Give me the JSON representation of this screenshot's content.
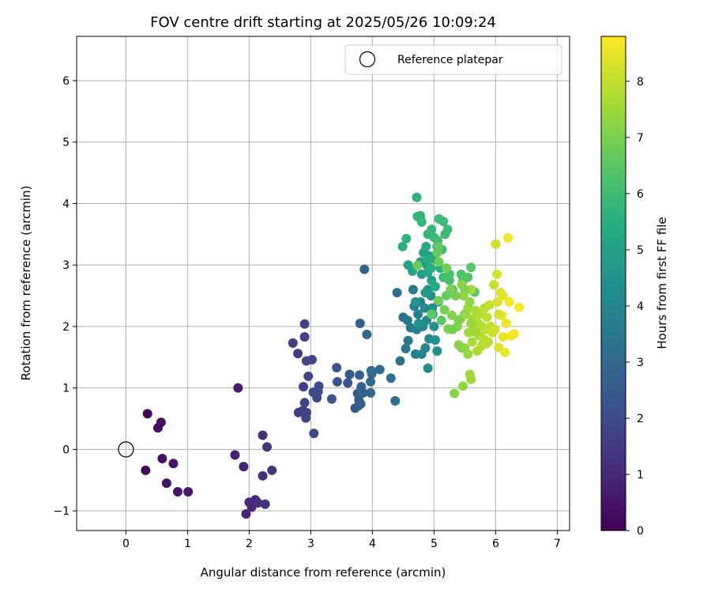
{
  "chart_data": {
    "type": "scatter",
    "title": "FOV centre drift starting at 2025/05/26 10:09:24",
    "xlabel": "Angular distance from reference (arcmin)",
    "ylabel": "Rotation from reference (arcmin)",
    "xlim": [
      -0.8,
      7.2
    ],
    "ylim": [
      -1.32,
      6.72
    ],
    "xticks": [
      0,
      1,
      2,
      3,
      4,
      5,
      6,
      7
    ],
    "yticks": [
      -1,
      0,
      1,
      2,
      3,
      4,
      5,
      6
    ],
    "grid": true,
    "legend": {
      "placement": "top-right",
      "entries": [
        "Reference platepar"
      ]
    },
    "reference_point": {
      "x": 0,
      "y": 0,
      "label": "Reference platepar"
    },
    "colorbar": {
      "label": "Hours from first FF file",
      "colormap": "viridis",
      "range": [
        0,
        8.8
      ],
      "ticks": [
        0,
        1,
        2,
        3,
        4,
        5,
        6,
        7,
        8
      ]
    },
    "points": [
      {
        "x": 0.32,
        "y": -0.34,
        "h": 0.1
      },
      {
        "x": 0.35,
        "y": 0.58,
        "h": 0.2
      },
      {
        "x": 0.52,
        "y": 0.35,
        "h": 0.3
      },
      {
        "x": 0.57,
        "y": 0.44,
        "h": 0.35
      },
      {
        "x": 0.59,
        "y": -0.15,
        "h": 0.4
      },
      {
        "x": 0.66,
        "y": -0.55,
        "h": 0.45
      },
      {
        "x": 0.77,
        "y": -0.23,
        "h": 0.5
      },
      {
        "x": 0.84,
        "y": -0.69,
        "h": 0.55
      },
      {
        "x": 1.01,
        "y": -0.69,
        "h": 0.6
      },
      {
        "x": 1.82,
        "y": 1.0,
        "h": 0.7
      },
      {
        "x": 1.77,
        "y": -0.09,
        "h": 0.8
      },
      {
        "x": 1.91,
        "y": -0.28,
        "h": 0.85
      },
      {
        "x": 1.95,
        "y": -1.05,
        "h": 0.9
      },
      {
        "x": 2.0,
        "y": -0.86,
        "h": 0.95
      },
      {
        "x": 2.04,
        "y": -0.94,
        "h": 1.0
      },
      {
        "x": 2.1,
        "y": -0.82,
        "h": 1.05
      },
      {
        "x": 2.14,
        "y": -0.87,
        "h": 1.1
      },
      {
        "x": 2.22,
        "y": 0.23,
        "h": 1.15
      },
      {
        "x": 2.22,
        "y": -0.43,
        "h": 1.2
      },
      {
        "x": 2.26,
        "y": -0.89,
        "h": 1.25
      },
      {
        "x": 2.29,
        "y": 0.04,
        "h": 1.3
      },
      {
        "x": 2.37,
        "y": -0.34,
        "h": 1.35
      },
      {
        "x": 2.71,
        "y": 1.73,
        "h": 1.5
      },
      {
        "x": 2.79,
        "y": 1.56,
        "h": 1.55
      },
      {
        "x": 2.8,
        "y": 0.6,
        "h": 1.6
      },
      {
        "x": 2.87,
        "y": 0.63,
        "h": 1.65
      },
      {
        "x": 2.88,
        "y": 1.02,
        "h": 1.7
      },
      {
        "x": 2.9,
        "y": 2.04,
        "h": 1.72
      },
      {
        "x": 2.9,
        "y": 0.76,
        "h": 1.75
      },
      {
        "x": 2.9,
        "y": 1.83,
        "h": 1.78
      },
      {
        "x": 2.92,
        "y": 0.51,
        "h": 1.8
      },
      {
        "x": 2.93,
        "y": 1.44,
        "h": 1.85
      },
      {
        "x": 2.93,
        "y": 0.6,
        "h": 1.88
      },
      {
        "x": 2.96,
        "y": 1.19,
        "h": 1.9
      },
      {
        "x": 3.02,
        "y": 1.46,
        "h": 1.92
      },
      {
        "x": 3.04,
        "y": 0.93,
        "h": 1.95
      },
      {
        "x": 3.05,
        "y": 0.26,
        "h": 1.98
      },
      {
        "x": 3.1,
        "y": 0.84,
        "h": 2.0
      },
      {
        "x": 3.13,
        "y": 1.03,
        "h": 2.05
      },
      {
        "x": 3.12,
        "y": 0.94,
        "h": 2.1
      },
      {
        "x": 3.34,
        "y": 0.82,
        "h": 2.2
      },
      {
        "x": 3.42,
        "y": 1.33,
        "h": 2.25
      },
      {
        "x": 3.43,
        "y": 1.1,
        "h": 2.3
      },
      {
        "x": 3.6,
        "y": 1.08,
        "h": 2.35
      },
      {
        "x": 3.63,
        "y": 1.22,
        "h": 2.4
      },
      {
        "x": 3.72,
        "y": 0.67,
        "h": 2.45
      },
      {
        "x": 3.76,
        "y": 0.91,
        "h": 2.5
      },
      {
        "x": 3.77,
        "y": 0.71,
        "h": 2.55
      },
      {
        "x": 3.78,
        "y": 0.81,
        "h": 2.6
      },
      {
        "x": 3.79,
        "y": 1.21,
        "h": 2.65
      },
      {
        "x": 3.8,
        "y": 2.05,
        "h": 2.7
      },
      {
        "x": 3.81,
        "y": 0.74,
        "h": 2.72
      },
      {
        "x": 3.82,
        "y": 1.02,
        "h": 2.75
      },
      {
        "x": 3.85,
        "y": 0.92,
        "h": 2.8
      },
      {
        "x": 3.87,
        "y": 2.93,
        "h": 2.85
      },
      {
        "x": 3.91,
        "y": 1.87,
        "h": 2.9
      },
      {
        "x": 3.97,
        "y": 0.92,
        "h": 2.95
      },
      {
        "x": 3.97,
        "y": 1.1,
        "h": 3.0
      },
      {
        "x": 3.98,
        "y": 1.28,
        "h": 3.05
      },
      {
        "x": 3.99,
        "y": 1.23,
        "h": 3.08
      },
      {
        "x": 4.12,
        "y": 1.3,
        "h": 3.1
      },
      {
        "x": 4.3,
        "y": 1.16,
        "h": 3.15
      },
      {
        "x": 4.37,
        "y": 0.79,
        "h": 3.2
      },
      {
        "x": 4.4,
        "y": 2.55,
        "h": 3.25
      },
      {
        "x": 4.45,
        "y": 1.44,
        "h": 3.3
      },
      {
        "x": 4.5,
        "y": 2.15,
        "h": 3.35
      },
      {
        "x": 4.54,
        "y": 1.64,
        "h": 3.4
      },
      {
        "x": 4.57,
        "y": 2.1,
        "h": 3.45
      },
      {
        "x": 4.58,
        "y": 1.77,
        "h": 3.5
      },
      {
        "x": 4.62,
        "y": 1.98,
        "h": 3.55
      },
      {
        "x": 4.66,
        "y": 2.6,
        "h": 3.6
      },
      {
        "x": 4.68,
        "y": 2.33,
        "h": 3.65
      },
      {
        "x": 4.7,
        "y": 1.55,
        "h": 3.7
      },
      {
        "x": 4.72,
        "y": 1.95,
        "h": 3.75
      },
      {
        "x": 4.74,
        "y": 2.2,
        "h": 3.8
      },
      {
        "x": 4.78,
        "y": 2.4,
        "h": 3.85
      },
      {
        "x": 4.8,
        "y": 1.55,
        "h": 3.9
      },
      {
        "x": 4.82,
        "y": 2.0,
        "h": 3.95
      },
      {
        "x": 4.85,
        "y": 2.3,
        "h": 4.0
      },
      {
        "x": 4.86,
        "y": 1.65,
        "h": 4.05
      },
      {
        "x": 4.88,
        "y": 2.1,
        "h": 4.1
      },
      {
        "x": 4.9,
        "y": 1.32,
        "h": 4.15
      },
      {
        "x": 4.92,
        "y": 1.8,
        "h": 4.2
      },
      {
        "x": 4.95,
        "y": 2.5,
        "h": 4.25
      },
      {
        "x": 4.97,
        "y": 2.3,
        "h": 4.3
      },
      {
        "x": 5.0,
        "y": 2.0,
        "h": 4.35
      },
      {
        "x": 5.02,
        "y": 1.78,
        "h": 4.4
      },
      {
        "x": 5.05,
        "y": 1.6,
        "h": 4.45
      },
      {
        "x": 5.07,
        "y": 2.4,
        "h": 4.5
      },
      {
        "x": 4.7,
        "y": 2.4,
        "h": 4.55
      },
      {
        "x": 4.75,
        "y": 2.05,
        "h": 4.6
      },
      {
        "x": 4.9,
        "y": 2.6,
        "h": 4.65
      },
      {
        "x": 4.98,
        "y": 2.2,
        "h": 4.7
      },
      {
        "x": 4.88,
        "y": 3.0,
        "h": 4.75
      },
      {
        "x": 4.86,
        "y": 2.55,
        "h": 4.8
      },
      {
        "x": 4.8,
        "y": 2.85,
        "h": 4.85
      },
      {
        "x": 4.92,
        "y": 3.15,
        "h": 4.9
      },
      {
        "x": 4.83,
        "y": 3.2,
        "h": 4.95
      },
      {
        "x": 4.96,
        "y": 2.75,
        "h": 5.0
      },
      {
        "x": 4.78,
        "y": 3.05,
        "h": 5.05
      },
      {
        "x": 4.65,
        "y": 2.9,
        "h": 5.1
      },
      {
        "x": 4.58,
        "y": 3.0,
        "h": 5.15
      },
      {
        "x": 4.9,
        "y": 2.88,
        "h": 5.2
      },
      {
        "x": 5.0,
        "y": 3.1,
        "h": 5.25
      },
      {
        "x": 4.87,
        "y": 3.3,
        "h": 5.3
      },
      {
        "x": 5.02,
        "y": 2.65,
        "h": 5.35
      },
      {
        "x": 4.95,
        "y": 2.95,
        "h": 5.4
      },
      {
        "x": 5.1,
        "y": 2.95,
        "h": 5.45
      },
      {
        "x": 4.9,
        "y": 3.1,
        "h": 5.5
      },
      {
        "x": 5.05,
        "y": 3.3,
        "h": 5.55
      },
      {
        "x": 4.49,
        "y": 3.3,
        "h": 5.6
      },
      {
        "x": 4.55,
        "y": 3.43,
        "h": 5.65
      },
      {
        "x": 4.72,
        "y": 4.1,
        "h": 5.7
      },
      {
        "x": 4.73,
        "y": 3.79,
        "h": 5.72
      },
      {
        "x": 4.78,
        "y": 3.8,
        "h": 5.75
      },
      {
        "x": 4.8,
        "y": 3.7,
        "h": 5.78
      },
      {
        "x": 4.9,
        "y": 3.5,
        "h": 5.8
      },
      {
        "x": 4.96,
        "y": 3.58,
        "h": 5.82
      },
      {
        "x": 5.0,
        "y": 3.45,
        "h": 5.85
      },
      {
        "x": 5.08,
        "y": 3.75,
        "h": 5.88
      },
      {
        "x": 5.15,
        "y": 3.71,
        "h": 5.9
      },
      {
        "x": 5.18,
        "y": 3.5,
        "h": 5.93
      },
      {
        "x": 5.22,
        "y": 3.58,
        "h": 5.96
      },
      {
        "x": 5.13,
        "y": 3.25,
        "h": 6.0
      },
      {
        "x": 5.06,
        "y": 3.4,
        "h": 6.05
      },
      {
        "x": 5.15,
        "y": 2.8,
        "h": 6.1
      },
      {
        "x": 5.25,
        "y": 2.75,
        "h": 6.15
      },
      {
        "x": 5.3,
        "y": 2.6,
        "h": 6.2
      },
      {
        "x": 5.25,
        "y": 2.85,
        "h": 6.25
      },
      {
        "x": 5.44,
        "y": 2.85,
        "h": 6.3
      },
      {
        "x": 5.47,
        "y": 2.75,
        "h": 6.35
      },
      {
        "x": 5.55,
        "y": 2.8,
        "h": 6.4
      },
      {
        "x": 5.6,
        "y": 2.96,
        "h": 6.45
      },
      {
        "x": 5.5,
        "y": 2.2,
        "h": 6.5
      },
      {
        "x": 5.66,
        "y": 2.56,
        "h": 6.55
      },
      {
        "x": 4.96,
        "y": 2.2,
        "h": 6.6
      },
      {
        "x": 5.07,
        "y": 3.3,
        "h": 6.65
      },
      {
        "x": 5.05,
        "y": 3.2,
        "h": 6.7
      },
      {
        "x": 4.73,
        "y": 2.99,
        "h": 6.75
      },
      {
        "x": 5.08,
        "y": 3.05,
        "h": 6.8
      },
      {
        "x": 5.2,
        "y": 2.95,
        "h": 6.85
      },
      {
        "x": 5.07,
        "y": 2.42,
        "h": 6.9
      },
      {
        "x": 5.17,
        "y": 2.27,
        "h": 6.95
      },
      {
        "x": 5.23,
        "y": 1.96,
        "h": 7.0
      },
      {
        "x": 5.27,
        "y": 2.6,
        "h": 7.05
      },
      {
        "x": 5.29,
        "y": 2.18,
        "h": 7.1
      },
      {
        "x": 5.33,
        "y": 0.91,
        "h": 7.12
      },
      {
        "x": 5.38,
        "y": 2.0,
        "h": 7.15
      },
      {
        "x": 5.4,
        "y": 1.7,
        "h": 7.18
      },
      {
        "x": 5.43,
        "y": 2.12,
        "h": 7.2
      },
      {
        "x": 5.45,
        "y": 2.68,
        "h": 7.25
      },
      {
        "x": 5.47,
        "y": 1.03,
        "h": 7.3
      },
      {
        "x": 5.48,
        "y": 2.5,
        "h": 7.32
      },
      {
        "x": 5.5,
        "y": 1.65,
        "h": 7.35
      },
      {
        "x": 5.52,
        "y": 2.2,
        "h": 7.4
      },
      {
        "x": 5.55,
        "y": 2.3,
        "h": 7.45
      },
      {
        "x": 5.56,
        "y": 1.9,
        "h": 7.5
      },
      {
        "x": 5.58,
        "y": 1.22,
        "h": 7.52
      },
      {
        "x": 5.6,
        "y": 1.14,
        "h": 7.55
      },
      {
        "x": 5.6,
        "y": 2.6,
        "h": 7.58
      },
      {
        "x": 5.62,
        "y": 1.75,
        "h": 7.6
      },
      {
        "x": 5.63,
        "y": 2.12,
        "h": 7.62
      },
      {
        "x": 5.65,
        "y": 1.98,
        "h": 7.65
      },
      {
        "x": 5.67,
        "y": 2.26,
        "h": 7.68
      },
      {
        "x": 5.7,
        "y": 1.6,
        "h": 7.7
      },
      {
        "x": 5.72,
        "y": 2.05,
        "h": 7.72
      },
      {
        "x": 5.74,
        "y": 1.85,
        "h": 7.75
      },
      {
        "x": 5.75,
        "y": 2.2,
        "h": 7.78
      },
      {
        "x": 5.77,
        "y": 1.68,
        "h": 7.8
      },
      {
        "x": 5.78,
        "y": 2.0,
        "h": 7.82
      },
      {
        "x": 5.8,
        "y": 1.8,
        "h": 7.85
      },
      {
        "x": 5.82,
        "y": 2.3,
        "h": 7.88
      },
      {
        "x": 5.84,
        "y": 1.95,
        "h": 7.9
      },
      {
        "x": 5.86,
        "y": 2.15,
        "h": 7.92
      },
      {
        "x": 5.88,
        "y": 1.75,
        "h": 7.95
      },
      {
        "x": 5.9,
        "y": 2.35,
        "h": 7.98
      },
      {
        "x": 5.92,
        "y": 2.0,
        "h": 8.0
      },
      {
        "x": 5.95,
        "y": 1.9,
        "h": 8.05
      },
      {
        "x": 5.97,
        "y": 2.68,
        "h": 8.1
      },
      {
        "x": 5.99,
        "y": 1.95,
        "h": 8.15
      },
      {
        "x": 6.0,
        "y": 3.34,
        "h": 8.2
      },
      {
        "x": 6.02,
        "y": 2.85,
        "h": 8.25
      },
      {
        "x": 6.03,
        "y": 2.4,
        "h": 8.3
      },
      {
        "x": 6.05,
        "y": 1.66,
        "h": 8.35
      },
      {
        "x": 6.08,
        "y": 2.55,
        "h": 8.4
      },
      {
        "x": 6.1,
        "y": 2.18,
        "h": 8.45
      },
      {
        "x": 6.12,
        "y": 1.83,
        "h": 8.5
      },
      {
        "x": 6.15,
        "y": 1.58,
        "h": 8.55
      },
      {
        "x": 6.17,
        "y": 2.05,
        "h": 8.6
      },
      {
        "x": 6.2,
        "y": 3.44,
        "h": 8.62
      },
      {
        "x": 6.22,
        "y": 2.4,
        "h": 8.65
      },
      {
        "x": 6.25,
        "y": 1.85,
        "h": 8.68
      },
      {
        "x": 6.3,
        "y": 1.88,
        "h": 8.7
      },
      {
        "x": 6.38,
        "y": 2.31,
        "h": 8.75
      },
      {
        "x": 5.55,
        "y": 1.55,
        "h": 7.4
      },
      {
        "x": 5.35,
        "y": 2.5,
        "h": 6.9
      },
      {
        "x": 5.4,
        "y": 2.1,
        "h": 7.0
      },
      {
        "x": 5.3,
        "y": 1.95,
        "h": 6.95
      },
      {
        "x": 5.5,
        "y": 2.6,
        "h": 7.1
      },
      {
        "x": 5.58,
        "y": 2.4,
        "h": 7.3
      },
      {
        "x": 5.12,
        "y": 2.1,
        "h": 6.5
      },
      {
        "x": 5.2,
        "y": 2.5,
        "h": 6.7
      },
      {
        "x": 5.45,
        "y": 1.65,
        "h": 7.2
      },
      {
        "x": 5.6,
        "y": 2.05,
        "h": 7.45
      },
      {
        "x": 5.68,
        "y": 1.9,
        "h": 7.55
      },
      {
        "x": 6.05,
        "y": 2.2,
        "h": 8.3
      },
      {
        "x": 5.85,
        "y": 1.72,
        "h": 7.9
      },
      {
        "x": 6.12,
        "y": 2.5,
        "h": 8.45
      }
    ]
  }
}
